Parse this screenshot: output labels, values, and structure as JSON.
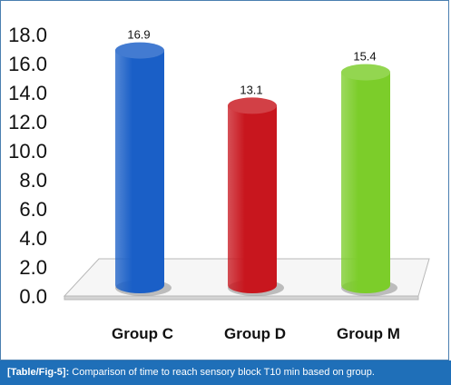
{
  "caption": {
    "tag": "[Table/Fig-5]:",
    "text": "Comparison of time to reach sensory block T10 min based on group."
  },
  "chart_data": {
    "type": "bar",
    "title": "",
    "xlabel": "",
    "ylabel": "",
    "categories": [
      "Group C",
      "Group D",
      "Group M"
    ],
    "values": [
      16.9,
      13.1,
      15.4
    ],
    "data_labels": [
      "16.9",
      "13.1",
      "15.4"
    ],
    "ylim": [
      0,
      18
    ],
    "yticks": [
      "0.0",
      "2.0",
      "4.0",
      "6.0",
      "8.0",
      "10.0",
      "12.0",
      "14.0",
      "16.0",
      "18.0"
    ],
    "colors": [
      "#1a5fc7",
      "#c8161e",
      "#7ccd2a"
    ],
    "grid": false,
    "legend": "none",
    "style": "3d-cylinder"
  },
  "colors": {
    "caption_background": "#1f6fb8",
    "frame_border": "#4a7fb0"
  }
}
